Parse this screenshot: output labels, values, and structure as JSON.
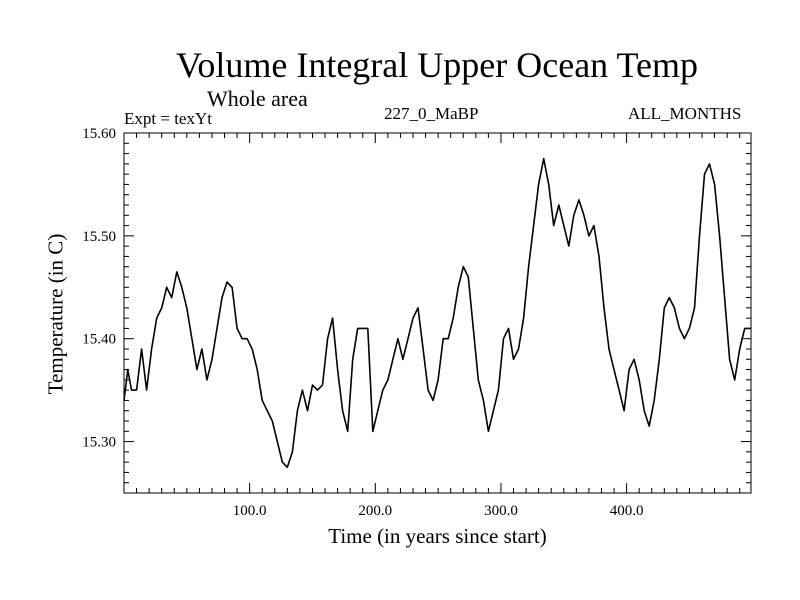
{
  "chart_data": {
    "type": "line",
    "title": "Volume Integral Upper Ocean Temp",
    "subtitle": "Whole area",
    "annotations": {
      "experiment": "Expt = texYt",
      "run": "227_0_MaBP",
      "months": "ALL_MONTHS"
    },
    "xlabel": "Time (in years since start)",
    "ylabel": "Temperature (in C)",
    "xlim": [
      0,
      499
    ],
    "ylim": [
      15.25,
      15.6
    ],
    "xticks": [
      100,
      200,
      300,
      400
    ],
    "xtick_labels": [
      "100.0",
      "200.0",
      "300.0",
      "400.0"
    ],
    "yticks": [
      15.3,
      15.4,
      15.5,
      15.6
    ],
    "ytick_labels": [
      "15.30",
      "15.40",
      "15.50",
      "15.60"
    ],
    "grid": false,
    "series": [
      {
        "color": "#000000",
        "points": [
          [
            0,
            15.34
          ],
          [
            3,
            15.37
          ],
          [
            6,
            15.35
          ],
          [
            10,
            15.35
          ],
          [
            14,
            15.39
          ],
          [
            18,
            15.35
          ],
          [
            22,
            15.39
          ],
          [
            26,
            15.42
          ],
          [
            30,
            15.43
          ],
          [
            34,
            15.45
          ],
          [
            38,
            15.44
          ],
          [
            42,
            15.465
          ],
          [
            46,
            15.45
          ],
          [
            50,
            15.43
          ],
          [
            54,
            15.4
          ],
          [
            58,
            15.37
          ],
          [
            62,
            15.39
          ],
          [
            66,
            15.36
          ],
          [
            70,
            15.38
          ],
          [
            74,
            15.41
          ],
          [
            78,
            15.44
          ],
          [
            82,
            15.455
          ],
          [
            86,
            15.45
          ],
          [
            90,
            15.41
          ],
          [
            94,
            15.4
          ],
          [
            98,
            15.4
          ],
          [
            102,
            15.39
          ],
          [
            106,
            15.37
          ],
          [
            110,
            15.34
          ],
          [
            114,
            15.33
          ],
          [
            118,
            15.32
          ],
          [
            122,
            15.3
          ],
          [
            126,
            15.28
          ],
          [
            130,
            15.275
          ],
          [
            134,
            15.29
          ],
          [
            138,
            15.33
          ],
          [
            142,
            15.35
          ],
          [
            146,
            15.33
          ],
          [
            150,
            15.355
          ],
          [
            154,
            15.35
          ],
          [
            158,
            15.355
          ],
          [
            162,
            15.4
          ],
          [
            166,
            15.42
          ],
          [
            170,
            15.37
          ],
          [
            174,
            15.33
          ],
          [
            178,
            15.31
          ],
          [
            182,
            15.38
          ],
          [
            186,
            15.41
          ],
          [
            190,
            15.41
          ],
          [
            194,
            15.41
          ],
          [
            198,
            15.31
          ],
          [
            202,
            15.33
          ],
          [
            206,
            15.35
          ],
          [
            210,
            15.36
          ],
          [
            214,
            15.38
          ],
          [
            218,
            15.4
          ],
          [
            222,
            15.38
          ],
          [
            226,
            15.4
          ],
          [
            230,
            15.42
          ],
          [
            234,
            15.43
          ],
          [
            238,
            15.39
          ],
          [
            242,
            15.35
          ],
          [
            246,
            15.34
          ],
          [
            250,
            15.36
          ],
          [
            254,
            15.4
          ],
          [
            258,
            15.4
          ],
          [
            262,
            15.42
          ],
          [
            266,
            15.45
          ],
          [
            270,
            15.47
          ],
          [
            274,
            15.46
          ],
          [
            278,
            15.41
          ],
          [
            282,
            15.36
          ],
          [
            286,
            15.34
          ],
          [
            290,
            15.31
          ],
          [
            294,
            15.33
          ],
          [
            298,
            15.35
          ],
          [
            302,
            15.4
          ],
          [
            306,
            15.41
          ],
          [
            310,
            15.38
          ],
          [
            314,
            15.39
          ],
          [
            318,
            15.42
          ],
          [
            322,
            15.47
          ],
          [
            326,
            15.51
          ],
          [
            330,
            15.55
          ],
          [
            334,
            15.575
          ],
          [
            338,
            15.55
          ],
          [
            342,
            15.51
          ],
          [
            346,
            15.53
          ],
          [
            350,
            15.51
          ],
          [
            354,
            15.49
          ],
          [
            358,
            15.52
          ],
          [
            362,
            15.535
          ],
          [
            366,
            15.52
          ],
          [
            370,
            15.5
          ],
          [
            374,
            15.51
          ],
          [
            378,
            15.48
          ],
          [
            382,
            15.43
          ],
          [
            386,
            15.39
          ],
          [
            390,
            15.37
          ],
          [
            394,
            15.35
          ],
          [
            398,
            15.33
          ],
          [
            402,
            15.37
          ],
          [
            406,
            15.38
          ],
          [
            410,
            15.36
          ],
          [
            414,
            15.33
          ],
          [
            418,
            15.315
          ],
          [
            422,
            15.34
          ],
          [
            426,
            15.38
          ],
          [
            430,
            15.43
          ],
          [
            434,
            15.44
          ],
          [
            438,
            15.43
          ],
          [
            442,
            15.41
          ],
          [
            446,
            15.4
          ],
          [
            450,
            15.41
          ],
          [
            454,
            15.43
          ],
          [
            458,
            15.5
          ],
          [
            462,
            15.56
          ],
          [
            466,
            15.57
          ],
          [
            470,
            15.55
          ],
          [
            474,
            15.5
          ],
          [
            478,
            15.44
          ],
          [
            482,
            15.38
          ],
          [
            486,
            15.36
          ],
          [
            490,
            15.39
          ],
          [
            494,
            15.41
          ],
          [
            499,
            15.41
          ]
        ]
      }
    ]
  }
}
